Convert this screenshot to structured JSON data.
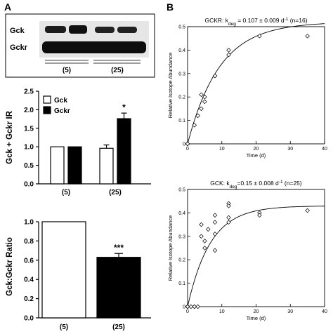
{
  "panels": {
    "a": "A",
    "b": "B"
  },
  "blot": {
    "rows": [
      "Gck",
      "Gckr"
    ],
    "groups": [
      "(5)",
      "(25)"
    ]
  },
  "chart_data": [
    {
      "id": "bar-ir",
      "type": "bar",
      "ylabel": "Gck + Gckr IR",
      "categories": [
        "(5)",
        "(25)"
      ],
      "series": [
        {
          "name": "Gck",
          "values": [
            1.0,
            0.96
          ],
          "errors": [
            0,
            0.09
          ],
          "color": "#ffffff"
        },
        {
          "name": "Gckr",
          "values": [
            1.0,
            1.76
          ],
          "errors": [
            0,
            0.15
          ],
          "color": "#000000"
        }
      ],
      "ylim": [
        0,
        2.5
      ],
      "yticks": [
        "0.0",
        "0.5",
        "1.0",
        "1.5",
        "2.0",
        "2.5"
      ],
      "annotations": [
        {
          "text": "*",
          "category": 1,
          "series": 1
        }
      ],
      "legend": "top-left"
    },
    {
      "id": "bar-ratio",
      "type": "bar",
      "ylabel": "Gck:Gckr Ratio",
      "categories": [
        "(5)",
        "(25)"
      ],
      "values": [
        1.0,
        0.63
      ],
      "errors": [
        0,
        0.04
      ],
      "colors": [
        "#ffffff",
        "#000000"
      ],
      "ylim": [
        0,
        1.0
      ],
      "yticks": [
        "0.0",
        "0.2",
        "0.4",
        "0.6",
        "0.8",
        "1.0"
      ],
      "annotations": [
        {
          "text": "***",
          "category": 1
        }
      ]
    },
    {
      "id": "scatter-gckr",
      "type": "scatter",
      "title_pre": "GCKR: k",
      "title_sub": "deg",
      "title_post": " = 0.107 ± 0.009 d",
      "title_sup": "-1",
      "title_end": " (n=16)",
      "xlabel": "Time (d)",
      "ylabel": "Relative Isotope Abundance",
      "xlim": [
        0,
        40
      ],
      "ylim": [
        0,
        0.5
      ],
      "xticks": [
        "0",
        "10",
        "20",
        "30",
        "40"
      ],
      "yticks": [
        "0",
        "0.1",
        "0.2",
        "0.3",
        "0.4",
        "0.5"
      ],
      "fit": {
        "plateau": 0.52,
        "k": 0.107
      },
      "x": [
        0,
        0,
        0,
        0,
        2,
        3,
        4,
        4,
        5,
        5,
        8,
        8,
        12,
        12,
        21,
        35
      ],
      "y": [
        0,
        0,
        0,
        0,
        0.08,
        0.12,
        0.21,
        0.15,
        0.18,
        0.2,
        0.29,
        0.29,
        0.38,
        0.4,
        0.46,
        0.46
      ]
    },
    {
      "id": "scatter-gck",
      "type": "scatter",
      "title_pre": "GCK: k",
      "title_sub": "deg",
      "title_post": "=0.15 ± 0.008 d",
      "title_sup": "-1",
      "title_end": " (n=25)",
      "xlabel": "Time (d)",
      "ylabel": "Relative Isotope Abundance",
      "xlim": [
        0,
        40
      ],
      "ylim": [
        0,
        0.5
      ],
      "xticks": [
        "0",
        "10",
        "20",
        "30",
        "40"
      ],
      "yticks": [
        "0",
        "0.1",
        "0.2",
        "0.3",
        "0.4",
        "0.5"
      ],
      "fit": {
        "plateau": 0.43,
        "k": 0.15
      },
      "x": [
        0,
        0,
        0,
        0,
        0,
        1,
        2,
        3,
        4,
        4,
        5,
        5,
        6,
        8,
        8,
        8,
        8,
        12,
        12,
        12,
        12,
        21,
        21,
        35,
        2
      ],
      "y": [
        0,
        0,
        0,
        0,
        0,
        0,
        0,
        0,
        0.3,
        0.35,
        0.28,
        0.25,
        0.33,
        0.39,
        0.36,
        0.24,
        0.31,
        0.44,
        0.43,
        0.38,
        0.36,
        0.4,
        0.39,
        0.41,
        0
      ]
    }
  ]
}
